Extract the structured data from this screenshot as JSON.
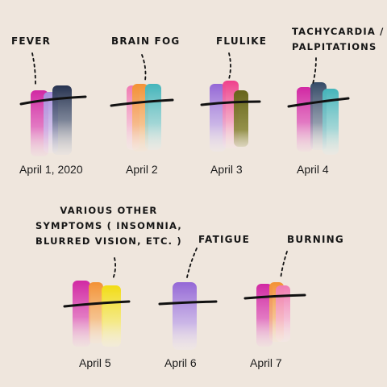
{
  "labels": {
    "fever": "FEVER",
    "brain_fog": "BRAIN FOG",
    "flulike": "FLULIKE",
    "tachycardia": "TACHYCARDIA /\nPALPITATIONS",
    "various": "VARIOUS OTHER\nSYMPTOMS ( INSOMNIA,\nBLURRED VISION, ETC. )",
    "fatigue": "FATIGUE",
    "burning": "BURNING"
  },
  "dates": {
    "d1": "April 1, 2020",
    "d2": "April 2",
    "d3": "April 3",
    "d4": "April 4",
    "d5": "April 5",
    "d6": "April 6",
    "d7": "April 7"
  },
  "colors": {
    "background": "#efe6dd",
    "magenta": "#d4359e",
    "lavender": "#a78bd8",
    "navy": "#2d3f5e",
    "orange": "#f3923a",
    "teal": "#4fb6bc",
    "purple": "#9a6cd8",
    "pink": "#ef4f8e",
    "olive": "#6f6d1c",
    "slate": "#3b5670",
    "yellow": "#f1df1a",
    "line": "#111111"
  }
}
